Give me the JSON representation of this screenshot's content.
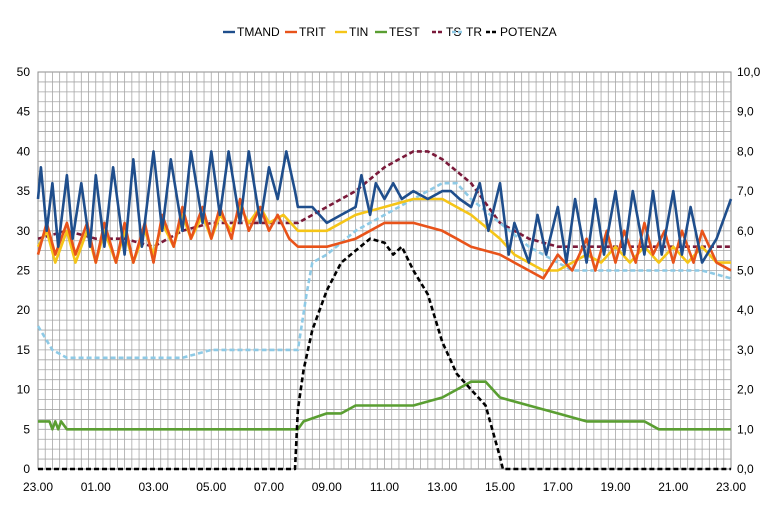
{
  "chart_data": {
    "type": "line",
    "legend": {
      "placement": "top",
      "entries": [
        "TMAND",
        "TRIT",
        "TIN",
        "TEST",
        "TS",
        "TR",
        "POTENZA"
      ]
    },
    "x_axis": {
      "labels": [
        "23.00",
        "01.00",
        "03.00",
        "05.00",
        "07.00",
        "09.00",
        "11.00",
        "13.00",
        "15.00",
        "17.00",
        "19.00",
        "21.00",
        "23.00"
      ],
      "range": [
        0,
        24
      ],
      "grid": true
    },
    "y_axis_left": {
      "labels": [
        "0",
        "5",
        "10",
        "15",
        "20",
        "25",
        "30",
        "35",
        "40",
        "45",
        "50"
      ],
      "range": [
        0,
        50
      ],
      "grid": true
    },
    "y_axis_right": {
      "labels": [
        "0,0",
        "1,0",
        "2,0",
        "3,0",
        "4,0",
        "5,0",
        "6,0",
        "7,0",
        "8,0",
        "9,0",
        "10,0"
      ],
      "range": [
        0,
        10
      ]
    },
    "series": [
      {
        "name": "TMAND",
        "color": "#1f4e8c",
        "style": "solid",
        "axis": "left",
        "x": [
          0,
          0.1,
          0.3,
          0.5,
          0.7,
          1,
          1.2,
          1.5,
          1.8,
          2,
          2.3,
          2.6,
          3,
          3.3,
          3.6,
          4,
          4.3,
          4.6,
          5,
          5.3,
          5.7,
          6,
          6.3,
          6.6,
          7,
          7.3,
          7.7,
          8,
          8.3,
          8.6,
          8.9,
          9,
          9.5,
          10,
          10.5,
          11,
          11.2,
          11.5,
          11.7,
          12,
          12.3,
          12.6,
          13,
          13.5,
          14,
          14.3,
          14.6,
          15,
          15.3,
          15.6,
          16,
          16.3,
          16.5,
          17,
          17.3,
          17.6,
          18,
          18.3,
          18.6,
          19,
          19.3,
          19.6,
          20,
          20.3,
          20.6,
          21,
          21.3,
          21.6,
          22,
          22.3,
          22.6,
          23,
          23.5,
          24
        ],
        "y": [
          34,
          38,
          30,
          36,
          28,
          37,
          29,
          36,
          28,
          37,
          28,
          38,
          27,
          39,
          28,
          40,
          30,
          39,
          30,
          40,
          31,
          40,
          32,
          40,
          31,
          40,
          31,
          38,
          34,
          40,
          35,
          33,
          33,
          31,
          32,
          33,
          37,
          32,
          36,
          34,
          36,
          34,
          35,
          34,
          35,
          35,
          34,
          33,
          36,
          30,
          36,
          27,
          31,
          26,
          32,
          27,
          33,
          26,
          34,
          26,
          34,
          27,
          35,
          27,
          35,
          27,
          35,
          27,
          35,
          27,
          33,
          26,
          29,
          34
        ]
      },
      {
        "name": "TRIT",
        "color": "#e8531a",
        "style": "solid",
        "axis": "left",
        "x": [
          0,
          0.3,
          0.6,
          1,
          1.3,
          1.7,
          2,
          2.3,
          2.7,
          3,
          3.3,
          3.7,
          4,
          4.3,
          4.7,
          5,
          5.3,
          5.7,
          6,
          6.3,
          6.7,
          7,
          7.3,
          7.7,
          8,
          8.3,
          8.7,
          9,
          10,
          11,
          12,
          12.5,
          13,
          14,
          14.5,
          15,
          16,
          16.5,
          17,
          17.5,
          18,
          18.5,
          19,
          19.3,
          19.7,
          20,
          20.3,
          20.7,
          21,
          21.3,
          21.7,
          22,
          22.3,
          22.7,
          23,
          23.5,
          24
        ],
        "y": [
          27,
          31,
          27,
          31,
          27,
          31,
          26,
          31,
          26,
          31,
          26,
          31,
          26,
          32,
          28,
          33,
          29,
          33,
          29,
          33,
          29,
          34,
          30,
          33,
          30,
          32,
          29,
          28,
          28,
          29,
          31,
          31,
          31,
          30,
          29,
          28,
          27,
          26,
          25,
          24,
          27,
          25,
          29,
          25,
          30,
          26,
          30,
          26,
          31,
          27,
          30,
          26,
          30,
          26,
          30,
          26,
          25
        ]
      },
      {
        "name": "TIN",
        "color": "#f5c518",
        "style": "solid",
        "axis": "left",
        "x": [
          0,
          0.3,
          0.6,
          1,
          1.3,
          1.7,
          2,
          2.3,
          2.7,
          3,
          3.3,
          3.7,
          4,
          4.3,
          4.7,
          5,
          5.3,
          5.7,
          6,
          6.3,
          6.7,
          7,
          7.3,
          7.7,
          8,
          8.5,
          9,
          10,
          11,
          12,
          13,
          14,
          14.5,
          15,
          16,
          16.5,
          17,
          17.5,
          18,
          18.5,
          19,
          19.5,
          20,
          20.5,
          21,
          21.5,
          22,
          22.5,
          23,
          23.5,
          24
        ],
        "y": [
          28,
          30,
          26,
          30,
          26,
          30,
          26,
          30,
          26,
          30,
          26,
          30,
          27,
          31,
          28,
          32,
          29,
          32,
          29,
          32,
          30,
          33,
          31,
          33,
          31,
          32,
          30,
          30,
          32,
          33,
          34,
          34,
          33,
          32,
          29,
          27,
          26,
          25,
          25,
          26,
          27,
          26,
          28,
          26,
          28,
          26,
          28,
          26,
          28,
          26,
          26
        ]
      },
      {
        "name": "TEST",
        "color": "#5a9e32",
        "style": "solid",
        "axis": "left",
        "x": [
          0,
          0.4,
          0.5,
          0.6,
          0.7,
          0.8,
          1,
          2,
          3,
          4,
          5,
          6,
          7,
          8,
          8.5,
          9,
          9.2,
          10,
          10.5,
          11,
          11.5,
          12,
          13,
          14,
          14.5,
          15,
          15.5,
          16,
          17,
          18,
          19,
          20,
          21,
          21.5,
          22,
          23,
          24
        ],
        "y": [
          6,
          6,
          5,
          6,
          5,
          6,
          5,
          5,
          5,
          5,
          5,
          5,
          5,
          5,
          5,
          5,
          6,
          7,
          7,
          8,
          8,
          8,
          8,
          9,
          10,
          11,
          11,
          9,
          8,
          7,
          6,
          6,
          6,
          5,
          5,
          5,
          5
        ]
      },
      {
        "name": "TS",
        "color": "#7a1a3a",
        "style": "dashed",
        "axis": "left",
        "x": [
          0,
          1,
          2,
          3,
          4,
          5,
          6,
          7,
          8,
          9,
          10,
          11,
          12,
          12.5,
          13,
          13.5,
          14,
          15,
          16,
          17,
          18,
          19,
          20,
          21,
          22,
          23,
          24
        ],
        "y": [
          29,
          30,
          29,
          29,
          28,
          30,
          31,
          31,
          31,
          31,
          33,
          35,
          38,
          39,
          40,
          40,
          39,
          36,
          31,
          29,
          28,
          28,
          28,
          28,
          28,
          28,
          28
        ]
      },
      {
        "name": "TR",
        "color": "#8ecae6",
        "style": "dashed",
        "axis": "left",
        "x": [
          0,
          0.5,
          1,
          2,
          3,
          4,
          5,
          6,
          7,
          8,
          9,
          9.3,
          9.5,
          10,
          11,
          12,
          13,
          13.5,
          14,
          14.5,
          15,
          16,
          17,
          18,
          18.5,
          19,
          20,
          21,
          22,
          23,
          24
        ],
        "y": [
          18,
          15,
          14,
          14,
          14,
          14,
          14,
          15,
          15,
          15,
          15,
          22,
          26,
          27,
          30,
          32,
          34,
          35,
          36,
          36,
          34,
          31,
          28,
          26,
          25,
          25,
          25,
          25,
          25,
          25,
          24
        ]
      },
      {
        "name": "POTENZA",
        "color": "#000000",
        "style": "dashed",
        "axis": "right",
        "x": [
          0,
          1,
          2,
          3,
          4,
          5,
          6,
          7,
          8,
          8.9,
          9,
          9.2,
          9.5,
          10,
          10.5,
          11,
          11.5,
          12,
          12.3,
          12.6,
          13,
          13.5,
          14,
          14.5,
          15,
          15.5,
          16,
          16.1,
          17,
          18,
          19,
          20,
          21,
          22,
          23,
          24
        ],
        "y": [
          0,
          0,
          0,
          0,
          0,
          0,
          0,
          0,
          0,
          0,
          1.5,
          2.5,
          3.5,
          4.5,
          5.2,
          5.5,
          5.8,
          5.7,
          5.4,
          5.6,
          5,
          4.4,
          3.2,
          2.4,
          2,
          1.6,
          0.3,
          0,
          0,
          0,
          0,
          0,
          0,
          0,
          0,
          0
        ]
      }
    ]
  }
}
